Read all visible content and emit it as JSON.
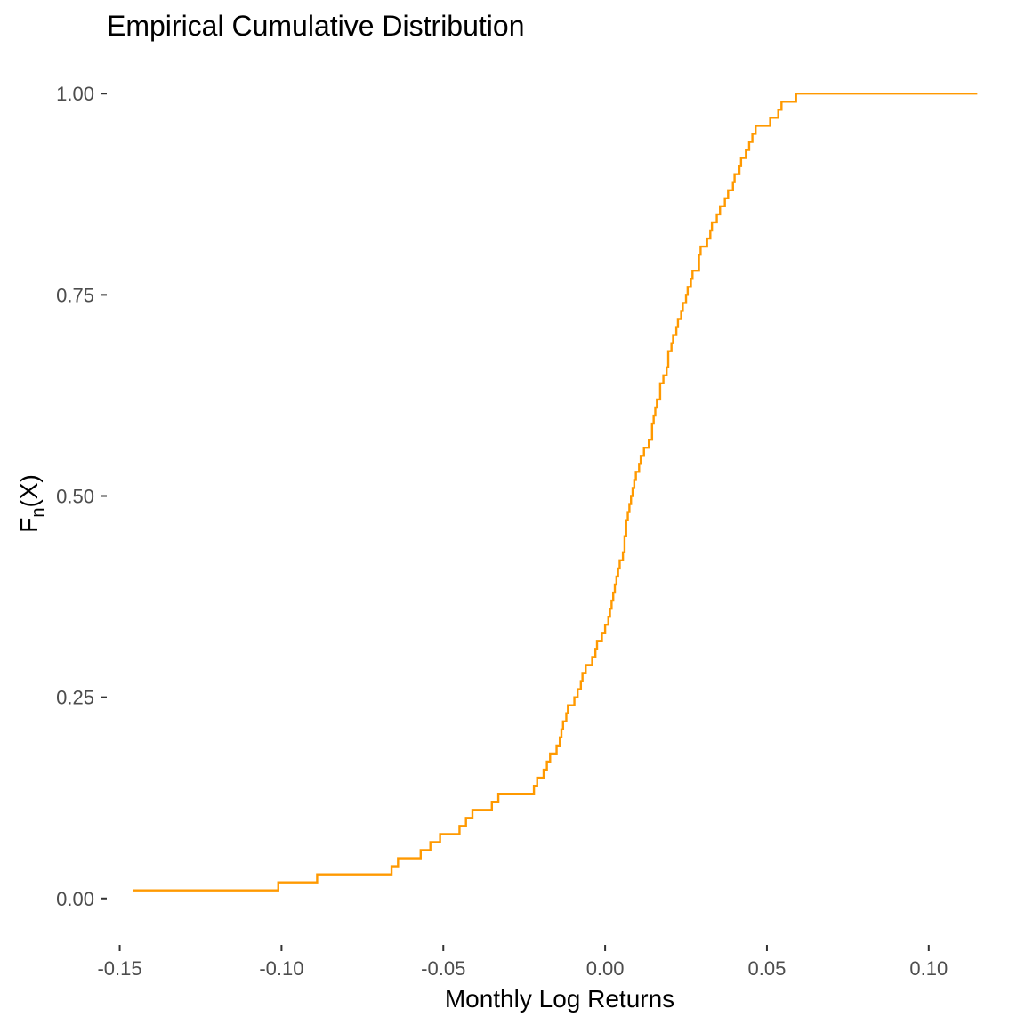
{
  "chart_data": {
    "type": "line",
    "step": "ecdf",
    "title": "Empirical Cumulative Distribution",
    "xlabel": "Monthly Log Returns",
    "ylabel": "F",
    "ylabel_subscript": "n",
    "ylabel_suffix": "(X)",
    "xlim": [
      -0.154,
      0.116
    ],
    "ylim": [
      -0.05,
      1.05
    ],
    "x_ticks": [
      -0.15,
      -0.1,
      -0.05,
      0.0,
      0.05,
      0.1
    ],
    "x_tick_labels": [
      "-0.15",
      "-0.10",
      "-0.05",
      "0.00",
      "0.05",
      "0.10"
    ],
    "y_ticks": [
      0.0,
      0.25,
      0.5,
      0.75,
      1.0
    ],
    "y_tick_labels": [
      "0.00",
      "0.25",
      "0.50",
      "0.75",
      "1.00"
    ],
    "grid": false,
    "line_color": "#FF9900",
    "series": [
      {
        "x": [
          -0.146,
          -0.101,
          -0.089,
          -0.066,
          -0.064,
          -0.057,
          -0.054,
          -0.051,
          -0.045,
          -0.043,
          -0.041,
          -0.035,
          -0.033,
          -0.022,
          -0.021,
          -0.019,
          -0.018,
          -0.017,
          -0.015,
          -0.014,
          -0.0135,
          -0.013,
          -0.012,
          -0.0115,
          -0.0095,
          -0.0085,
          -0.0075,
          -0.007,
          -0.006,
          -0.004,
          -0.003,
          -0.0025,
          -0.001,
          0.0,
          0.001,
          0.0015,
          0.002,
          0.0025,
          0.003,
          0.0035,
          0.004,
          0.0045,
          0.0055,
          0.006,
          0.006,
          0.0065,
          0.0065,
          0.007,
          0.0075,
          0.008,
          0.0085,
          0.009,
          0.0095,
          0.0105,
          0.011,
          0.012,
          0.0135,
          0.0145,
          0.0145,
          0.015,
          0.0155,
          0.016,
          0.017,
          0.017,
          0.018,
          0.019,
          0.0195,
          0.0195,
          0.0205,
          0.021,
          0.022,
          0.0225,
          0.0235,
          0.024,
          0.025,
          0.0255,
          0.0265,
          0.027,
          0.029,
          0.029,
          0.0295,
          0.0315,
          0.0325,
          0.033,
          0.0345,
          0.0355,
          0.037,
          0.038,
          0.0395,
          0.04,
          0.0415,
          0.042,
          0.0435,
          0.0445,
          0.0455,
          0.0465,
          0.051,
          0.0535,
          0.0545,
          0.059,
          0.0665,
          0.0705,
          0.0715,
          0.0745,
          0.0825,
          0.1045,
          0.115
        ],
        "y": [
          0.01,
          0.02,
          0.03,
          0.04,
          0.05,
          0.06,
          0.07,
          0.08,
          0.09,
          0.1,
          0.11,
          0.12,
          0.13,
          0.14,
          0.15,
          0.16,
          0.17,
          0.18,
          0.19,
          0.2,
          0.21,
          0.22,
          0.23,
          0.24,
          0.25,
          0.26,
          0.27,
          0.28,
          0.29,
          0.3,
          0.31,
          0.32,
          0.33,
          0.34,
          0.35,
          0.36,
          0.37,
          0.38,
          0.39,
          0.4,
          0.41,
          0.42,
          0.43,
          0.44,
          0.45,
          0.46,
          0.47,
          0.48,
          0.49,
          0.5,
          0.51,
          0.52,
          0.53,
          0.54,
          0.55,
          0.56,
          0.57,
          0.58,
          0.59,
          0.6,
          0.61,
          0.62,
          0.63,
          0.64,
          0.65,
          0.66,
          0.67,
          0.68,
          0.69,
          0.7,
          0.71,
          0.72,
          0.73,
          0.74,
          0.75,
          0.76,
          0.77,
          0.78,
          0.79,
          0.8,
          0.81,
          0.82,
          0.83,
          0.84,
          0.85,
          0.86,
          0.87,
          0.88,
          0.89,
          0.9,
          0.91,
          0.92,
          0.93,
          0.94,
          0.95,
          0.96,
          0.97,
          0.98,
          0.99,
          1.0,
          1.0,
          1.0,
          1.0,
          1.0,
          1.0,
          1.0,
          1.0
        ]
      }
    ]
  }
}
